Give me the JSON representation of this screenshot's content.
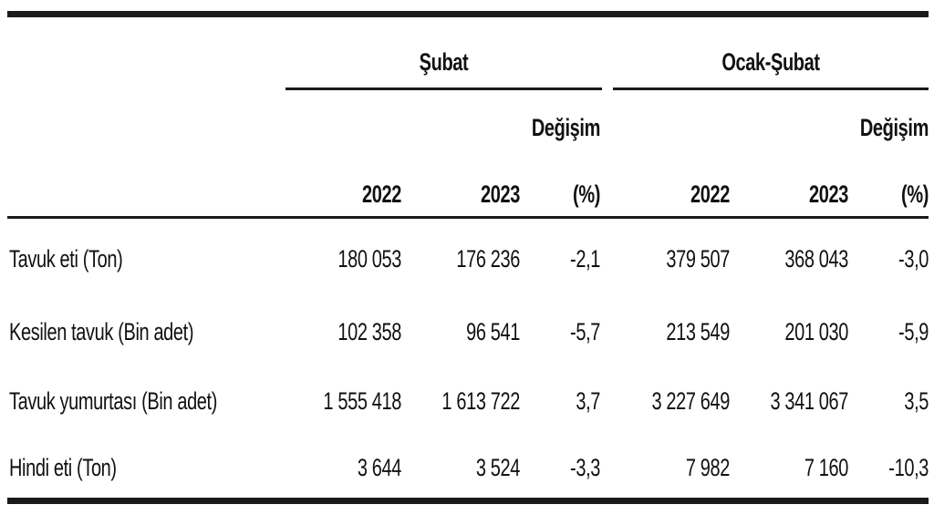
{
  "table": {
    "groups": [
      {
        "label": "Şubat"
      },
      {
        "label": "Ocak-Şubat"
      }
    ],
    "change_label": "Değişim",
    "change_unit": "(%)",
    "years": [
      "2022",
      "2023"
    ],
    "rows": [
      {
        "label": "Tavuk eti (Ton)",
        "values": [
          "180 053",
          "176 236",
          "-2,1",
          "379 507",
          "368 043",
          "-3,0"
        ]
      },
      {
        "label": "Kesilen tavuk (Bin adet)",
        "values": [
          "102 358",
          "96 541",
          "-5,7",
          "213 549",
          "201 030",
          "-5,9"
        ]
      },
      {
        "label": "Tavuk yumurtası (Bin adet)",
        "values": [
          "1 555 418",
          "1 613 722",
          "3,7",
          "3 227 649",
          "3 341 067",
          "3,5"
        ]
      },
      {
        "label": "Hindi eti (Ton)",
        "values": [
          "3 644",
          "3 524",
          "-3,3",
          "7 982",
          "7 160",
          "-10,3"
        ]
      }
    ]
  }
}
